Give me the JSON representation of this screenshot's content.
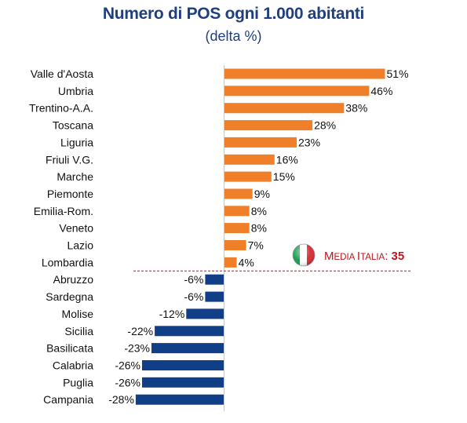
{
  "chart_data": {
    "type": "bar",
    "orientation": "horizontal",
    "title": "Numero di POS ogni 1.000 abitanti",
    "subtitle": "(delta %)",
    "categories": [
      "Valle d'Aosta",
      "Umbria",
      "Trentino-A.A.",
      "Toscana",
      "Liguria",
      "Friuli V.G.",
      "Marche",
      "Piemonte",
      "Emilia-Rom.",
      "Veneto",
      "Lazio",
      "Lombardia",
      "Abruzzo",
      "Sardegna",
      "Molise",
      "Sicilia",
      "Basilicata",
      "Calabria",
      "Puglia",
      "Campania"
    ],
    "values": [
      51,
      46,
      38,
      28,
      23,
      16,
      15,
      9,
      8,
      8,
      7,
      4,
      -6,
      -6,
      -12,
      -22,
      -23,
      -26,
      -26,
      -28
    ],
    "value_labels": [
      "51%",
      "46%",
      "38%",
      "28%",
      "23%",
      "16%",
      "15%",
      "9%",
      "8%",
      "8%",
      "7%",
      "4%",
      "-6%",
      "-6%",
      "-12%",
      "-22%",
      "-23%",
      "-26%",
      "-26%",
      "-28%"
    ],
    "xlim": [
      -32,
      60
    ],
    "colors": {
      "positive": "#f07f2a",
      "negative": "#103f87",
      "average_line": "#c0141c"
    },
    "average": {
      "label_main": "Media Italia",
      "label_sep": ": ",
      "value": "35",
      "icon": "italian-flag-icon"
    },
    "grid": false,
    "legend": "none"
  }
}
